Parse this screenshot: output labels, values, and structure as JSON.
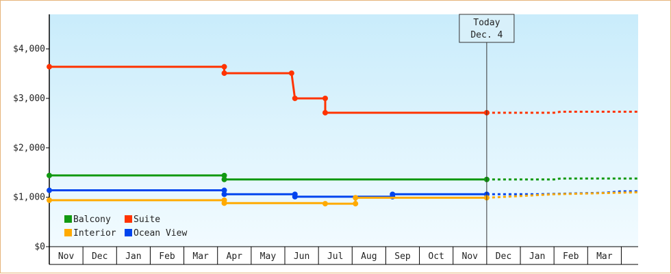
{
  "chart_data": {
    "type": "line",
    "title": "",
    "xlabel": "",
    "ylabel": "",
    "ylim": [
      0,
      4700
    ],
    "y_ticks": [
      "$0",
      "$1,000",
      "$2,000",
      "$3,000",
      "$4,000"
    ],
    "y_tick_values": [
      0,
      1000,
      2000,
      3000,
      4000
    ],
    "x_range_months": [
      0,
      17.5
    ],
    "x_ticks": [
      "Nov",
      "Dec",
      "Jan",
      "Feb",
      "Mar",
      "Apr",
      "May",
      "Jun",
      "Jul",
      "Aug",
      "Sep",
      "Oct",
      "Nov",
      "Dec",
      "Jan",
      "Feb",
      "Mar"
    ],
    "today": {
      "label": "Today",
      "date": "Dec. 4",
      "x": 13.0
    },
    "grid": false,
    "legend": "bottom-left",
    "series": [
      {
        "name": "Suite",
        "color": "#ff3300",
        "points": [
          [
            0,
            3640
          ],
          [
            5.2,
            3640
          ],
          [
            5.2,
            3510
          ],
          [
            7.2,
            3510
          ],
          [
            7.3,
            3000
          ],
          [
            8.2,
            3000
          ],
          [
            8.2,
            2710
          ],
          [
            13.0,
            2710
          ]
        ],
        "marker_points": [
          [
            0,
            3640
          ],
          [
            5.2,
            3640
          ],
          [
            5.2,
            3510
          ],
          [
            7.2,
            3510
          ],
          [
            7.3,
            3000
          ],
          [
            8.2,
            3000
          ],
          [
            8.2,
            2710
          ],
          [
            13.0,
            2710
          ]
        ],
        "forecast": [
          [
            13.0,
            2710
          ],
          [
            15.0,
            2710
          ],
          [
            15.2,
            2730
          ],
          [
            17.5,
            2730
          ]
        ]
      },
      {
        "name": "Balcony",
        "color": "#119911",
        "points": [
          [
            0,
            1440
          ],
          [
            5.2,
            1440
          ],
          [
            5.2,
            1360
          ],
          [
            13.0,
            1360
          ]
        ],
        "marker_points": [
          [
            0,
            1440
          ],
          [
            5.2,
            1440
          ],
          [
            5.2,
            1360
          ],
          [
            13.0,
            1360
          ]
        ],
        "forecast": [
          [
            13.0,
            1360
          ],
          [
            15.0,
            1360
          ],
          [
            15.2,
            1380
          ],
          [
            17.5,
            1380
          ]
        ]
      },
      {
        "name": "Ocean View",
        "color": "#0044ee",
        "points": [
          [
            0,
            1140
          ],
          [
            5.2,
            1140
          ],
          [
            5.2,
            1060
          ],
          [
            7.3,
            1060
          ],
          [
            7.3,
            1010
          ],
          [
            10.2,
            1010
          ],
          [
            10.2,
            1060
          ],
          [
            13.0,
            1060
          ]
        ],
        "marker_points": [
          [
            0,
            1140
          ],
          [
            5.2,
            1140
          ],
          [
            5.2,
            1060
          ],
          [
            7.3,
            1060
          ],
          [
            7.3,
            1010
          ],
          [
            10.2,
            1010
          ],
          [
            10.2,
            1060
          ],
          [
            13.0,
            1060
          ]
        ],
        "forecast": [
          [
            13.0,
            1060
          ],
          [
            14.5,
            1060
          ],
          [
            16.5,
            1090
          ],
          [
            17.0,
            1120
          ],
          [
            17.5,
            1120
          ]
        ]
      },
      {
        "name": "Interior",
        "color": "#ffaa00",
        "points": [
          [
            0,
            940
          ],
          [
            5.2,
            940
          ],
          [
            5.2,
            880
          ],
          [
            8.2,
            880
          ],
          [
            8.2,
            870
          ],
          [
            9.1,
            870
          ],
          [
            9.1,
            990
          ],
          [
            13.0,
            990
          ]
        ],
        "marker_points": [
          [
            0,
            940
          ],
          [
            5.2,
            940
          ],
          [
            5.2,
            880
          ],
          [
            8.2,
            870
          ],
          [
            9.1,
            870
          ],
          [
            9.1,
            990
          ],
          [
            13.0,
            990
          ]
        ],
        "forecast": [
          [
            13.0,
            990
          ],
          [
            15.0,
            1060
          ],
          [
            17.5,
            1100
          ]
        ]
      }
    ],
    "legend_order": [
      "Balcony",
      "Suite",
      "Interior",
      "Ocean View"
    ]
  }
}
